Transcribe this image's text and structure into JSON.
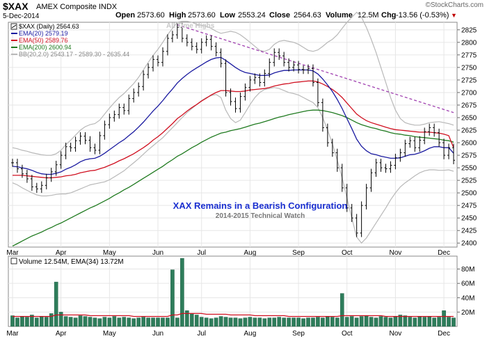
{
  "header": {
    "symbol": "$XAX",
    "exchange": "AMEX Composite  INDX",
    "date": "5-Dec-2014",
    "open_label": "Open",
    "open": "2573.60",
    "high_label": "High",
    "high": "2573.60",
    "low_label": "Low",
    "low": "2553.24",
    "close_label": "Close",
    "close": "2564.63",
    "volume_label": "Volume",
    "volume": "12.5M",
    "chg_label": "Chg",
    "chg": "-13.56 (-0.53%)",
    "chg_arrow": "▼",
    "watermark": "©StockCharts.com"
  },
  "annotations": {
    "all_time_highs": "All Time Highs",
    "title": "XAX Remains in a Bearish Configuration",
    "subtitle": "2014-2015 Technical Watch"
  },
  "colors": {
    "price": "#000000",
    "ema20": "#1a1aa0",
    "ema50": "#d01020",
    "ema200": "#1f7a1f",
    "bb": "#b8b8b8",
    "trendline": "#a040b0",
    "volume_bar": "#2e7d5b",
    "volume_ema": "#d01020",
    "title_text": "#1a2fd0",
    "grid": "#e6e6e6",
    "chg_negative": "#c00000"
  },
  "chart_data": [
    {
      "type": "line",
      "title": "$XAX (Daily) 2564.63",
      "x_labels": [
        "Mar",
        "Apr",
        "May",
        "Jun",
        "Jul",
        "Aug",
        "Sep",
        "Oct",
        "Nov",
        "Dec"
      ],
      "y_ticks": [
        2400,
        2425,
        2450,
        2475,
        2500,
        2525,
        2550,
        2575,
        2600,
        2625,
        2650,
        2675,
        2700,
        2725,
        2750,
        2775,
        2800,
        2825
      ],
      "ylim": [
        2392,
        2840
      ],
      "legend": [
        {
          "key": "price",
          "label": "$XAX (Daily) 2564.63"
        },
        {
          "key": "ema20",
          "label": "EMA(20) 2579.19"
        },
        {
          "key": "ema50",
          "label": "EMA(50) 2589.76"
        },
        {
          "key": "ema200",
          "label": "EMA(200) 2600.94"
        },
        {
          "key": "bb",
          "label": "BB(20,2.0) 2543.17 - 2589.30 - 2635.44"
        }
      ],
      "series": [
        {
          "key": "close",
          "values": [
            2560,
            2548,
            2538,
            2528,
            2512,
            2508,
            2515,
            2530,
            2542,
            2556,
            2575,
            2592,
            2590,
            2604,
            2613,
            2605,
            2590,
            2585,
            2614,
            2636,
            2650,
            2656,
            2670,
            2664,
            2688,
            2700,
            2712,
            2736,
            2750,
            2766,
            2760,
            2782,
            2808,
            2815,
            2830,
            2808,
            2800,
            2792,
            2786,
            2800,
            2806,
            2792,
            2780,
            2758,
            2700,
            2682,
            2668,
            2692,
            2710,
            2725,
            2730,
            2720,
            2738,
            2760,
            2780,
            2773,
            2760,
            2750,
            2755,
            2746,
            2745,
            2748,
            2720,
            2680,
            2630,
            2600,
            2580,
            2550,
            2510,
            2470,
            2450,
            2420,
            2475,
            2510,
            2540,
            2560,
            2550,
            2548,
            2555,
            2570,
            2580,
            2598,
            2604,
            2590,
            2605,
            2622,
            2630,
            2620,
            2600,
            2575,
            2590,
            2565
          ]
        },
        {
          "key": "ema20",
          "values": [
            2553,
            2552,
            2550,
            2548,
            2545,
            2541,
            2538,
            2537,
            2537,
            2539,
            2542,
            2547,
            2551,
            2556,
            2562,
            2566,
            2568,
            2569,
            2573,
            2579,
            2586,
            2593,
            2600,
            2606,
            2614,
            2622,
            2631,
            2641,
            2652,
            2663,
            2673,
            2684,
            2696,
            2707,
            2719,
            2728,
            2736,
            2743,
            2749,
            2755,
            2761,
            2766,
            2769,
            2770,
            2764,
            2757,
            2750,
            2744,
            2740,
            2738,
            2736,
            2734,
            2734,
            2735,
            2739,
            2742,
            2744,
            2744,
            2745,
            2745,
            2745,
            2745,
            2743,
            2737,
            2727,
            2715,
            2702,
            2686,
            2668,
            2648,
            2628,
            2607,
            2593,
            2584,
            2578,
            2576,
            2573,
            2571,
            2569,
            2569,
            2570,
            2573,
            2576,
            2577,
            2580,
            2584,
            2589,
            2592,
            2592,
            2590,
            2590,
            2579
          ]
        },
        {
          "key": "ema50",
          "values": [
            2535,
            2535,
            2535,
            2534,
            2533,
            2532,
            2531,
            2530,
            2530,
            2531,
            2532,
            2534,
            2535,
            2537,
            2540,
            2542,
            2544,
            2545,
            2548,
            2551,
            2555,
            2559,
            2564,
            2568,
            2573,
            2578,
            2584,
            2590,
            2597,
            2605,
            2612,
            2620,
            2629,
            2638,
            2648,
            2655,
            2663,
            2670,
            2676,
            2683,
            2689,
            2695,
            2700,
            2704,
            2704,
            2703,
            2702,
            2702,
            2703,
            2705,
            2706,
            2707,
            2708,
            2710,
            2713,
            2715,
            2717,
            2718,
            2720,
            2721,
            2722,
            2723,
            2723,
            2721,
            2717,
            2712,
            2706,
            2699,
            2690,
            2679,
            2668,
            2657,
            2650,
            2644,
            2640,
            2637,
            2634,
            2631,
            2628,
            2626,
            2625,
            2624,
            2623,
            2622,
            2621,
            2621,
            2621,
            2620,
            2619,
            2617,
            2614,
            2590
          ]
        },
        {
          "key": "ema200",
          "values": [
            2394,
            2399,
            2404,
            2409,
            2414,
            2418,
            2422,
            2427,
            2431,
            2436,
            2440,
            2445,
            2450,
            2455,
            2460,
            2465,
            2470,
            2474,
            2479,
            2484,
            2489,
            2495,
            2500,
            2506,
            2511,
            2517,
            2523,
            2529,
            2535,
            2541,
            2547,
            2553,
            2560,
            2566,
            2573,
            2578,
            2584,
            2590,
            2595,
            2601,
            2606,
            2611,
            2615,
            2619,
            2621,
            2624,
            2626,
            2628,
            2631,
            2634,
            2637,
            2639,
            2642,
            2645,
            2648,
            2651,
            2653,
            2656,
            2658,
            2660,
            2662,
            2664,
            2665,
            2665,
            2664,
            2662,
            2660,
            2657,
            2654,
            2650,
            2645,
            2640,
            2636,
            2633,
            2630,
            2628,
            2625,
            2623,
            2620,
            2618,
            2617,
            2615,
            2614,
            2612,
            2611,
            2610,
            2609,
            2608,
            2607,
            2605,
            2604,
            2601
          ]
        },
        {
          "key": "bb_upper",
          "values": [
            2590,
            2588,
            2585,
            2583,
            2580,
            2578,
            2576,
            2575,
            2575,
            2578,
            2585,
            2596,
            2605,
            2615,
            2625,
            2632,
            2636,
            2638,
            2645,
            2657,
            2669,
            2680,
            2690,
            2698,
            2708,
            2718,
            2730,
            2745,
            2760,
            2774,
            2786,
            2800,
            2815,
            2828,
            2840,
            2842,
            2842,
            2840,
            2836,
            2834,
            2832,
            2828,
            2822,
            2818,
            2820,
            2822,
            2820,
            2815,
            2808,
            2800,
            2792,
            2784,
            2782,
            2786,
            2796,
            2802,
            2804,
            2802,
            2800,
            2796,
            2790,
            2784,
            2782,
            2785,
            2792,
            2800,
            2806,
            2815,
            2828,
            2840,
            2850,
            2860,
            2850,
            2830,
            2806,
            2780,
            2750,
            2720,
            2690,
            2665,
            2648,
            2640,
            2637,
            2635,
            2635,
            2637,
            2640,
            2641,
            2642,
            2640,
            2638,
            2635
          ]
        },
        {
          "key": "bb_lower",
          "values": [
            2520,
            2516,
            2510,
            2505,
            2500,
            2496,
            2494,
            2494,
            2495,
            2497,
            2498,
            2498,
            2500,
            2504,
            2508,
            2512,
            2516,
            2518,
            2520,
            2522,
            2526,
            2532,
            2538,
            2544,
            2552,
            2560,
            2568,
            2577,
            2586,
            2594,
            2602,
            2610,
            2620,
            2630,
            2640,
            2650,
            2660,
            2668,
            2676,
            2684,
            2690,
            2694,
            2696,
            2690,
            2665,
            2648,
            2640,
            2645,
            2660,
            2676,
            2690,
            2700,
            2706,
            2708,
            2710,
            2708,
            2704,
            2700,
            2698,
            2695,
            2690,
            2685,
            2680,
            2670,
            2650,
            2625,
            2598,
            2565,
            2530,
            2490,
            2450,
            2412,
            2400,
            2410,
            2425,
            2440,
            2455,
            2470,
            2486,
            2500,
            2512,
            2520,
            2527,
            2534,
            2540,
            2544,
            2546,
            2546,
            2545,
            2545,
            2546,
            2543
          ]
        }
      ],
      "trendline": {
        "from": {
          "index": 34,
          "value": 2835
        },
        "to": {
          "index": 91,
          "value": 2660
        }
      }
    },
    {
      "type": "bar",
      "title": "Volume 12.54M, EMA(34) 13.72M",
      "y_ticks": [
        20,
        40,
        60,
        80
      ],
      "y_tick_labels": [
        "20M",
        "40M",
        "60M",
        "80M"
      ],
      "ylim": [
        0,
        98
      ],
      "series": [
        {
          "key": "volume",
          "values": [
            15,
            12,
            14,
            13,
            16,
            12,
            14,
            13,
            18,
            62,
            20,
            14,
            13,
            12,
            15,
            14,
            13,
            12,
            11,
            13,
            12,
            14,
            12,
            13,
            12,
            11,
            12,
            13,
            12,
            12,
            12,
            12,
            12,
            79,
            12,
            95,
            22,
            18,
            16,
            13,
            12,
            11,
            12,
            14,
            13,
            12,
            12,
            11,
            12,
            13,
            12,
            12,
            11,
            12,
            12,
            13,
            12,
            12,
            12,
            12,
            11,
            12,
            12,
            13,
            12,
            14,
            13,
            12,
            46,
            13,
            14,
            12,
            14,
            15,
            13,
            12,
            14,
            13,
            12,
            14,
            16,
            15,
            13,
            12,
            14,
            13,
            14,
            12,
            13,
            22,
            13,
            12
          ]
        },
        {
          "key": "volume_ema",
          "values": [
            14,
            14,
            14,
            14,
            14,
            14,
            14,
            14,
            14,
            16,
            16,
            16,
            16,
            16,
            16,
            16,
            15,
            15,
            15,
            15,
            15,
            15,
            15,
            15,
            15,
            14,
            14,
            14,
            14,
            14,
            14,
            14,
            14,
            16,
            16,
            18,
            18,
            18,
            18,
            18,
            17,
            17,
            17,
            17,
            17,
            16,
            16,
            16,
            16,
            16,
            15,
            15,
            15,
            15,
            15,
            15,
            15,
            14,
            14,
            14,
            14,
            14,
            14,
            14,
            14,
            14,
            14,
            14,
            15,
            15,
            15,
            15,
            15,
            15,
            15,
            15,
            15,
            14,
            14,
            14,
            14,
            14,
            14,
            14,
            14,
            14,
            14,
            14,
            14,
            14,
            14,
            14
          ]
        }
      ]
    }
  ]
}
